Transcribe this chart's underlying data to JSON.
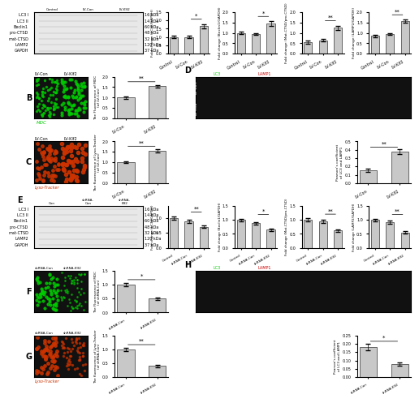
{
  "panel_A_bars": {
    "lc3": {
      "groups": [
        "Control",
        "LV-Con",
        "LV-Klf2"
      ],
      "values": [
        1.0,
        1.0,
        1.65
      ],
      "errors": [
        0.08,
        0.08,
        0.12
      ],
      "sig": "*",
      "ylim": [
        0,
        2.5
      ],
      "ylabel": "Fold change (LC3II/GAPDH)"
    },
    "beclin1": {
      "groups": [
        "Control",
        "LV-Con",
        "LV-Klf2"
      ],
      "values": [
        1.0,
        0.95,
        1.45
      ],
      "errors": [
        0.06,
        0.05,
        0.1
      ],
      "sig": "*",
      "ylim": [
        0,
        2.0
      ],
      "ylabel": "Fold change (Beclin1/GAPDH)"
    },
    "matCTSD": {
      "groups": [
        "Control",
        "LV-Con",
        "LV-Klf2"
      ],
      "values": [
        0.55,
        0.65,
        1.25
      ],
      "errors": [
        0.08,
        0.07,
        0.1
      ],
      "sig": "**",
      "ylim": [
        0,
        2.0
      ],
      "ylabel": "Fold change (Mat-CTSD/pro-CTSD)"
    },
    "lamp2": {
      "groups": [
        "Control",
        "LV-Con",
        "LV-Klf2"
      ],
      "values": [
        0.85,
        0.95,
        1.55
      ],
      "errors": [
        0.06,
        0.05,
        0.08
      ],
      "sig": "**",
      "ylim": [
        0,
        2.0
      ],
      "ylabel": "Fold change (LAMP2/GAPDH)"
    }
  },
  "panel_B_bars": {
    "groups": [
      "LV-Con",
      "LV-Klf2"
    ],
    "values": [
      1.0,
      1.55
    ],
    "errors": [
      0.05,
      0.06
    ],
    "sig": "**",
    "ylim": [
      0.0,
      2.0
    ],
    "ylabel": "The Fluorescence of MDC\n(of LV-Con)"
  },
  "panel_C_bars": {
    "groups": [
      "LV-Con",
      "LV-Klf2"
    ],
    "values": [
      1.0,
      1.55
    ],
    "errors": [
      0.05,
      0.07
    ],
    "sig": "**",
    "ylim": [
      0.0,
      2.0
    ],
    "ylabel": "The fluorescence of Lyso-Tracker\n(of LV-Con)"
  },
  "panel_D_bars": {
    "groups": [
      "LV-Con",
      "LV-Klf2"
    ],
    "values": [
      0.15,
      0.38
    ],
    "errors": [
      0.02,
      0.03
    ],
    "sig": "**",
    "ylim": [
      0.0,
      0.5
    ],
    "ylabel": "Pearson's coefficient\nof LC3 and LAMP1"
  },
  "panel_E_bars": {
    "lc3": {
      "groups": [
        "Control",
        "shRNA-Con",
        "shRNA-Klf2"
      ],
      "values": [
        1.0,
        0.88,
        0.7
      ],
      "errors": [
        0.06,
        0.05,
        0.04
      ],
      "sig": "**",
      "ylim": [
        0,
        1.4
      ],
      "ylabel": "Fold change (LC3II/GAPDH)"
    },
    "beclin1": {
      "groups": [
        "Control",
        "shRNA-Con",
        "shRNA-Klf2"
      ],
      "values": [
        1.0,
        0.88,
        0.65
      ],
      "errors": [
        0.05,
        0.05,
        0.04
      ],
      "sig": "*",
      "ylim": [
        0,
        1.5
      ],
      "ylabel": "Fold change (Beclin1/GAPDH)"
    },
    "matCTSD": {
      "groups": [
        "Control",
        "shRNA-Con",
        "shRNA-Klf2"
      ],
      "values": [
        1.0,
        0.95,
        0.62
      ],
      "errors": [
        0.06,
        0.06,
        0.04
      ],
      "sig": "**",
      "ylim": [
        0,
        1.5
      ],
      "ylabel": "Fold change (Mat-CTSD/pro-CTSD)"
    },
    "lamp2": {
      "groups": [
        "Control",
        "shRNA-Con",
        "shRNA-Klf2"
      ],
      "values": [
        1.0,
        0.92,
        0.55
      ],
      "errors": [
        0.05,
        0.05,
        0.04
      ],
      "sig": "**",
      "ylim": [
        0,
        1.5
      ],
      "ylabel": "Fold change (LAMP2/GAPDH)"
    }
  },
  "panel_F_bars": {
    "groups": [
      "shRNA-Con",
      "shRNA-Klf2"
    ],
    "values": [
      1.0,
      0.5
    ],
    "errors": [
      0.06,
      0.05
    ],
    "sig": "*",
    "ylim": [
      0.0,
      1.5
    ],
    "ylabel": "The Fluorescence of MDC\n(of shRNA-Con)"
  },
  "panel_G_bars": {
    "groups": [
      "shRNA-Con",
      "shRNA-Klf2"
    ],
    "values": [
      1.0,
      0.4
    ],
    "errors": [
      0.05,
      0.04
    ],
    "sig": "**",
    "ylim": [
      0.0,
      1.5
    ],
    "ylabel": "The fluorescence of Lyso-Tracker\n(of shRNA-Con)"
  },
  "panel_H_bars": {
    "groups": [
      "shRNA-Con",
      "shRNA-Klf2"
    ],
    "values": [
      0.18,
      0.08
    ],
    "errors": [
      0.02,
      0.01
    ],
    "sig": "*",
    "ylim": [
      0.0,
      0.25
    ],
    "ylabel": "Pearson's coefficient\nof LC3 and LAMP1"
  },
  "bar_color": "#c8c8c8",
  "bar_edge_color": "#333333",
  "background_color": "#ffffff",
  "text_color": "#000000",
  "sig_color": "#000000",
  "panel_label_fontsize": 8,
  "axis_fontsize": 5,
  "tick_fontsize": 4.5,
  "bar_width": 0.55
}
